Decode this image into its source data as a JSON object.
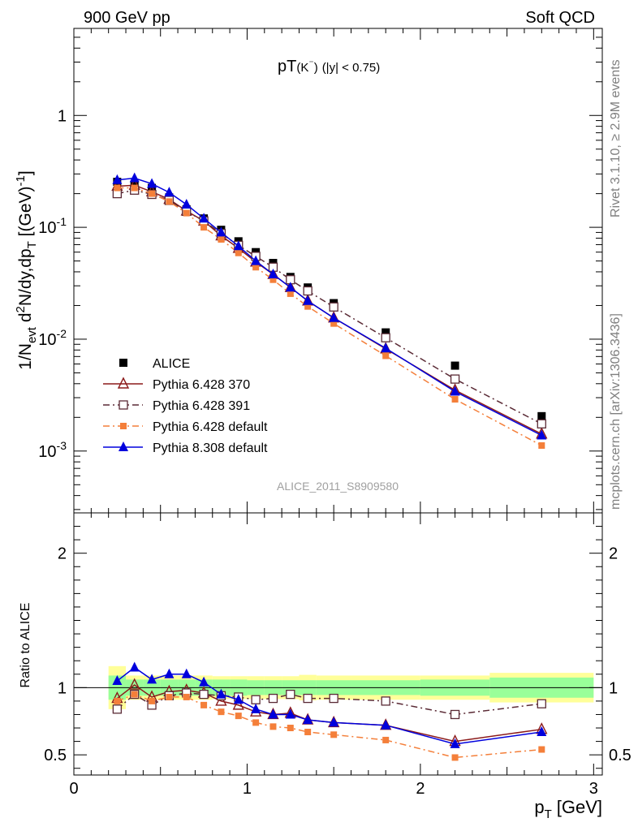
{
  "header": {
    "left": "900 GeV pp",
    "right": "Soft QCD"
  },
  "side": {
    "rivet": "Rivet 3.1.10, ≥ 2.9M events",
    "mcplots": "mcplots.cern.ch [arXiv:1306.3436]"
  },
  "chart_data": [
    {
      "type": "line",
      "title": "pT(K⁻) (|y| < 0.75)",
      "title_main": "pT",
      "title_particle": "(K",
      "title_charge": "⁻",
      "title_close": ")",
      "title_cut": "(|y| < 0.75)",
      "ylabel": "1/N_evt d²N/dy,dp_T [(GeV)⁻¹]",
      "yscale": "log",
      "xlim": [
        0,
        3.05
      ],
      "ylim": [
        0.00028,
        6
      ],
      "analysis_tag": "ALICE_2011_S8909580",
      "legend_position": "lower-left",
      "yticks": [
        {
          "value": 0.001,
          "base": "10",
          "exp": "-3"
        },
        {
          "value": 0.01,
          "base": "10",
          "exp": "-2"
        },
        {
          "value": 0.1,
          "base": "10",
          "exp": "-1"
        },
        {
          "value": 1,
          "base": "1",
          "exp": ""
        }
      ],
      "x": [
        0.25,
        0.35,
        0.45,
        0.55,
        0.65,
        0.75,
        0.85,
        0.95,
        1.05,
        1.15,
        1.25,
        1.35,
        1.5,
        1.8,
        2.2,
        2.7
      ],
      "series": [
        {
          "name": "ALICE",
          "color": "#000000",
          "marker": "square",
          "values": [
            0.255,
            0.24,
            0.225,
            0.185,
            0.145,
            0.12,
            0.095,
            0.075,
            0.06,
            0.048,
            0.036,
            0.029,
            0.021,
            0.0115,
            0.0058,
            0.00205
          ]
        },
        {
          "name": "Pythia 6.428 370",
          "color": "#8b1a1a",
          "marker": "open-triangle",
          "dash": "solid",
          "values": [
            0.233,
            0.238,
            0.208,
            0.178,
            0.14,
            0.114,
            0.084,
            0.065,
            0.049,
            0.038,
            0.029,
            0.022,
            0.0155,
            0.0082,
            0.0035,
            0.00142
          ]
        },
        {
          "name": "Pythia 6.428 391",
          "color": "#5a2a35",
          "marker": "open-square",
          "dash": "dashdot",
          "values": [
            0.2,
            0.215,
            0.197,
            0.174,
            0.139,
            0.114,
            0.088,
            0.069,
            0.055,
            0.044,
            0.034,
            0.027,
            0.0194,
            0.0103,
            0.0044,
            0.00175
          ]
        },
        {
          "name": "Pythia 6.428 default",
          "color": "#f47f3a",
          "marker": "filled-square",
          "dash": "dashdot",
          "values": [
            0.225,
            0.225,
            0.2,
            0.17,
            0.134,
            0.1,
            0.078,
            0.059,
            0.044,
            0.034,
            0.0255,
            0.0196,
            0.0138,
            0.0071,
            0.0029,
            0.00112
          ]
        },
        {
          "name": "Pythia 8.308 default",
          "color": "#0000dd",
          "marker": "filled-triangle",
          "dash": "solid",
          "values": [
            0.265,
            0.275,
            0.245,
            0.205,
            0.16,
            0.12,
            0.09,
            0.068,
            0.05,
            0.038,
            0.029,
            0.022,
            0.0155,
            0.0083,
            0.0034,
            0.00138
          ]
        }
      ]
    },
    {
      "type": "line",
      "ylabel": "Ratio to ALICE",
      "xlabel_main": "p",
      "xlabel_sub": "T",
      "xlabel_unit": "[GeV]",
      "xlim": [
        0,
        3.05
      ],
      "ylim": [
        0.35,
        2.3
      ],
      "xticks": [
        "0",
        "1",
        "2",
        "3"
      ],
      "yticks": [
        "0.5",
        "1",
        "2"
      ],
      "reference_line": 1,
      "bands": {
        "edges": [
          0.2,
          0.3,
          0.4,
          0.5,
          0.6,
          0.7,
          0.8,
          0.9,
          1.0,
          1.1,
          1.2,
          1.3,
          1.4,
          1.6,
          2.0,
          2.4,
          3.0
        ],
        "inner_color": "#99ff99",
        "outer_color": "#ffff99",
        "inner": [
          0.09,
          0.06,
          0.06,
          0.06,
          0.06,
          0.06,
          0.06,
          0.06,
          0.055,
          0.055,
          0.055,
          0.055,
          0.055,
          0.055,
          0.06,
          0.075
        ],
        "outer": [
          0.16,
          0.09,
          0.09,
          0.09,
          0.09,
          0.09,
          0.085,
          0.085,
          0.085,
          0.085,
          0.085,
          0.095,
          0.09,
          0.09,
          0.09,
          0.11
        ]
      },
      "x": [
        0.25,
        0.35,
        0.45,
        0.55,
        0.65,
        0.75,
        0.85,
        0.95,
        1.05,
        1.15,
        1.25,
        1.35,
        1.5,
        1.8,
        2.2,
        2.7
      ],
      "series": [
        {
          "name": "Pythia 6.428 370",
          "values": [
            0.92,
            1.02,
            0.93,
            0.97,
            0.98,
            0.96,
            0.9,
            0.87,
            0.82,
            0.8,
            0.81,
            0.76,
            0.74,
            0.72,
            0.6,
            0.69
          ]
        },
        {
          "name": "Pythia 6.428 391",
          "values": [
            0.84,
            0.95,
            0.87,
            0.94,
            0.96,
            0.95,
            0.94,
            0.93,
            0.91,
            0.92,
            0.95,
            0.92,
            0.92,
            0.9,
            0.8,
            0.88
          ]
        },
        {
          "name": "Pythia 6.428 default",
          "values": [
            0.9,
            0.95,
            0.9,
            0.93,
            0.93,
            0.87,
            0.82,
            0.79,
            0.74,
            0.71,
            0.7,
            0.67,
            0.65,
            0.61,
            0.48,
            0.54
          ]
        },
        {
          "name": "Pythia 8.308 default",
          "values": [
            1.05,
            1.15,
            1.06,
            1.1,
            1.1,
            1.04,
            0.95,
            0.91,
            0.84,
            0.8,
            0.8,
            0.76,
            0.74,
            0.72,
            0.58,
            0.67
          ]
        }
      ]
    }
  ]
}
